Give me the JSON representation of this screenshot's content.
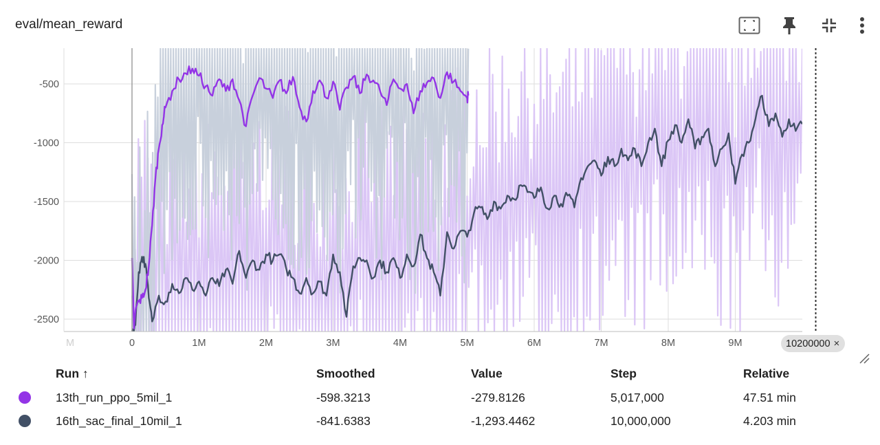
{
  "card": {
    "title": "eval/mean_reward",
    "icons": [
      "fit-to-domain-icon",
      "pin-icon",
      "collapse-icon",
      "more-vert-icon"
    ],
    "range_chip": {
      "label": "10200000",
      "close": "×"
    }
  },
  "colors": {
    "ppo_raw": "#dbc6f6",
    "ppo_smooth": "#9334e6",
    "sac_raw": "#c8d0dc",
    "sac_smooth": "#425066",
    "grid": "#dddddd",
    "axis_text": "#555555"
  },
  "chart_data": {
    "type": "line",
    "title": "eval/mean_reward",
    "xlim": [
      -1000000,
      11000000
    ],
    "ylim": [
      -2600,
      -300
    ],
    "x_tick_labels": [
      {
        "value": 0,
        "label": "0"
      },
      {
        "value": 1000000,
        "label": "1M"
      },
      {
        "value": 2000000,
        "label": "2M"
      },
      {
        "value": 3000000,
        "label": "3M"
      },
      {
        "value": 4000000,
        "label": "4M"
      },
      {
        "value": 5000000,
        "label": "5M"
      },
      {
        "value": 6000000,
        "label": "6M"
      },
      {
        "value": 7000000,
        "label": "7M"
      },
      {
        "value": 8000000,
        "label": "8M"
      },
      {
        "value": 9000000,
        "label": "9M"
      }
    ],
    "y_tick_labels": [
      {
        "value": -500,
        "label": "-500"
      },
      {
        "value": -1000,
        "label": "-1000"
      },
      {
        "value": -1500,
        "label": "-1500"
      },
      {
        "value": -2000,
        "label": "-2000"
      },
      {
        "value": -2500,
        "label": "-2500"
      }
    ],
    "marker_step": 10200000,
    "grid": true,
    "series": [
      {
        "name": "13th_run_ppo_5mil_1",
        "x_range": [
          0,
          5017000
        ],
        "smoothed": [
          [
            0,
            -1980
          ],
          [
            30000,
            -2580
          ],
          [
            60000,
            -2400
          ],
          [
            100000,
            -2350
          ],
          [
            150000,
            -2320
          ],
          [
            200000,
            -2250
          ],
          [
            250000,
            -2050
          ],
          [
            300000,
            -1700
          ],
          [
            350000,
            -1300
          ],
          [
            400000,
            -1050
          ],
          [
            450000,
            -850
          ],
          [
            500000,
            -700
          ],
          [
            600000,
            -560
          ],
          [
            700000,
            -460
          ],
          [
            800000,
            -410
          ],
          [
            900000,
            -370
          ],
          [
            1000000,
            -430
          ],
          [
            1100000,
            -520
          ],
          [
            1200000,
            -600
          ],
          [
            1300000,
            -460
          ],
          [
            1400000,
            -560
          ],
          [
            1500000,
            -460
          ],
          [
            1600000,
            -640
          ],
          [
            1700000,
            -860
          ],
          [
            1800000,
            -600
          ],
          [
            1900000,
            -450
          ],
          [
            2000000,
            -540
          ],
          [
            2100000,
            -620
          ],
          [
            2200000,
            -470
          ],
          [
            2300000,
            -580
          ],
          [
            2400000,
            -440
          ],
          [
            2500000,
            -700
          ],
          [
            2600000,
            -820
          ],
          [
            2700000,
            -560
          ],
          [
            2800000,
            -470
          ],
          [
            2900000,
            -620
          ],
          [
            3000000,
            -480
          ],
          [
            3100000,
            -720
          ],
          [
            3200000,
            -530
          ],
          [
            3300000,
            -440
          ],
          [
            3400000,
            -580
          ],
          [
            3500000,
            -420
          ],
          [
            3600000,
            -470
          ],
          [
            3700000,
            -560
          ],
          [
            3800000,
            -680
          ],
          [
            3900000,
            -460
          ],
          [
            4000000,
            -540
          ],
          [
            4100000,
            -500
          ],
          [
            4200000,
            -750
          ],
          [
            4300000,
            -560
          ],
          [
            4400000,
            -490
          ],
          [
            4500000,
            -450
          ],
          [
            4600000,
            -620
          ],
          [
            4700000,
            -400
          ],
          [
            4800000,
            -480
          ],
          [
            4900000,
            -560
          ],
          [
            5000000,
            -620
          ],
          [
            5017000,
            -598
          ]
        ],
        "raw_band": [
          -2620,
          -200
        ]
      },
      {
        "name": "16th_sac_final_10mil_1",
        "x_range": [
          0,
          10000000
        ],
        "smoothed": [
          [
            0,
            -2600
          ],
          [
            50000,
            -2550
          ],
          [
            100000,
            -2100
          ],
          [
            150000,
            -1970
          ],
          [
            200000,
            -2030
          ],
          [
            250000,
            -2320
          ],
          [
            300000,
            -2520
          ],
          [
            400000,
            -2300
          ],
          [
            500000,
            -2350
          ],
          [
            600000,
            -2200
          ],
          [
            700000,
            -2280
          ],
          [
            800000,
            -2150
          ],
          [
            900000,
            -2250
          ],
          [
            1000000,
            -2180
          ],
          [
            1100000,
            -2300
          ],
          [
            1200000,
            -2150
          ],
          [
            1300000,
            -2220
          ],
          [
            1400000,
            -2080
          ],
          [
            1500000,
            -2200
          ],
          [
            1600000,
            -1920
          ],
          [
            1700000,
            -2150
          ],
          [
            1800000,
            -2000
          ],
          [
            1900000,
            -2080
          ],
          [
            2000000,
            -1950
          ],
          [
            2100000,
            -2000
          ],
          [
            2200000,
            -1950
          ],
          [
            2300000,
            -2070
          ],
          [
            2400000,
            -2150
          ],
          [
            2500000,
            -2280
          ],
          [
            2600000,
            -2150
          ],
          [
            2700000,
            -2280
          ],
          [
            2800000,
            -2180
          ],
          [
            2900000,
            -2300
          ],
          [
            3000000,
            -1950
          ],
          [
            3100000,
            -2100
          ],
          [
            3200000,
            -2480
          ],
          [
            3300000,
            -2050
          ],
          [
            3400000,
            -1980
          ],
          [
            3500000,
            -2000
          ],
          [
            3600000,
            -2150
          ],
          [
            3700000,
            -2000
          ],
          [
            3800000,
            -2100
          ],
          [
            3900000,
            -1980
          ],
          [
            4000000,
            -2150
          ],
          [
            4100000,
            -1950
          ],
          [
            4200000,
            -2050
          ],
          [
            4300000,
            -1780
          ],
          [
            4400000,
            -1980
          ],
          [
            4500000,
            -2100
          ],
          [
            4600000,
            -2300
          ],
          [
            4700000,
            -1760
          ],
          [
            4800000,
            -1900
          ],
          [
            4900000,
            -1750
          ],
          [
            5000000,
            -1800
          ],
          [
            5100000,
            -1600
          ],
          [
            5200000,
            -1550
          ],
          [
            5300000,
            -1650
          ],
          [
            5400000,
            -1500
          ],
          [
            5500000,
            -1560
          ],
          [
            5600000,
            -1450
          ],
          [
            5700000,
            -1480
          ],
          [
            5800000,
            -1360
          ],
          [
            5900000,
            -1420
          ],
          [
            6000000,
            -1470
          ],
          [
            6100000,
            -1380
          ],
          [
            6200000,
            -1560
          ],
          [
            6300000,
            -1450
          ],
          [
            6400000,
            -1520
          ],
          [
            6500000,
            -1450
          ],
          [
            6600000,
            -1550
          ],
          [
            6700000,
            -1300
          ],
          [
            6800000,
            -1200
          ],
          [
            6900000,
            -1150
          ],
          [
            7000000,
            -1280
          ],
          [
            7100000,
            -1120
          ],
          [
            7200000,
            -1200
          ],
          [
            7300000,
            -1050
          ],
          [
            7400000,
            -1150
          ],
          [
            7500000,
            -1050
          ],
          [
            7600000,
            -1200
          ],
          [
            7700000,
            -1000
          ],
          [
            7800000,
            -880
          ],
          [
            7900000,
            -1200
          ],
          [
            8000000,
            -980
          ],
          [
            8100000,
            -850
          ],
          [
            8200000,
            -1000
          ],
          [
            8300000,
            -800
          ],
          [
            8400000,
            -1050
          ],
          [
            8500000,
            -950
          ],
          [
            8600000,
            -880
          ],
          [
            8700000,
            -1200
          ],
          [
            8800000,
            -1050
          ],
          [
            8900000,
            -920
          ],
          [
            9000000,
            -1350
          ],
          [
            9100000,
            -1100
          ],
          [
            9200000,
            -1000
          ],
          [
            9300000,
            -800
          ],
          [
            9400000,
            -600
          ],
          [
            9500000,
            -860
          ],
          [
            9600000,
            -750
          ],
          [
            9700000,
            -950
          ],
          [
            9800000,
            -800
          ],
          [
            9900000,
            -900
          ],
          [
            10000000,
            -841
          ]
        ],
        "raw_band": [
          -2620,
          -200
        ]
      }
    ]
  },
  "table": {
    "headers": {
      "run": "Run ↑",
      "smoothed": "Smoothed",
      "value": "Value",
      "step": "Step",
      "relative": "Relative"
    },
    "rows": [
      {
        "run": "13th_run_ppo_5mil_1",
        "smoothed": "-598.3213",
        "value": "-279.8126",
        "step": "5,017,000",
        "relative": "47.51 min"
      },
      {
        "run": "16th_sac_final_10mil_1",
        "smoothed": "-841.6383",
        "value": "-1,293.4462",
        "step": "10,000,000",
        "relative": "4.203 min"
      }
    ]
  }
}
